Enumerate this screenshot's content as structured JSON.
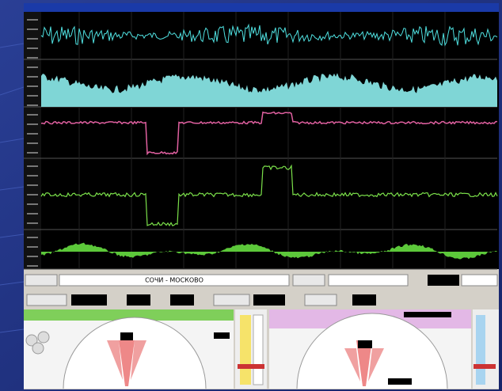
{
  "window": {
    "route": "СОЧИ - МОСКОВО"
  }
}
